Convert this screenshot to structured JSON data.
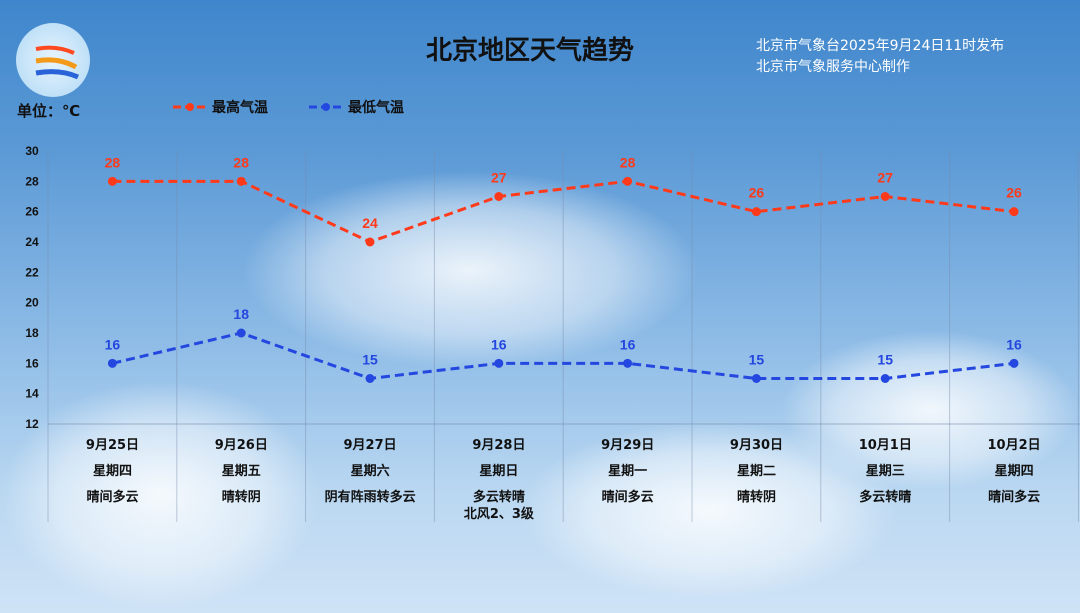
{
  "header": {
    "title": "北京地区天气趋势",
    "publish_line1": "北京市气象台2025年9月24日11时发布",
    "publish_line2": "北京市气象服务中心制作",
    "unit": "单位：℃"
  },
  "colors": {
    "high": "#ff3a1a",
    "low": "#2447e0",
    "text": "#111111"
  },
  "chart_data": {
    "type": "line",
    "ylim": [
      12,
      30
    ],
    "yticks": [
      "12",
      "14",
      "16",
      "18",
      "20",
      "22",
      "24",
      "26",
      "28",
      "30"
    ],
    "grid": "vertical column separators",
    "legend_position": "top-left",
    "categories": [
      "9月25日",
      "9月26日",
      "9月27日",
      "9月28日",
      "9月29日",
      "9月30日",
      "10月1日",
      "10月2日"
    ],
    "weekdays": [
      "星期四",
      "星期五",
      "星期六",
      "星期日",
      "星期一",
      "星期二",
      "星期三",
      "星期四"
    ],
    "weather": [
      "晴间多云",
      "晴转阴",
      "阴有阵雨转多云",
      "多云转晴",
      "晴间多云",
      "晴转阴",
      "多云转晴",
      "晴间多云"
    ],
    "wind": [
      "",
      "",
      "",
      "北风2、3级",
      "",
      "",
      "",
      ""
    ],
    "series": [
      {
        "name": "最高气温",
        "values": [
          28,
          28,
          24,
          27,
          28,
          26,
          27,
          26
        ]
      },
      {
        "name": "最低气温",
        "values": [
          16,
          18,
          15,
          16,
          16,
          15,
          15,
          16
        ]
      }
    ]
  }
}
